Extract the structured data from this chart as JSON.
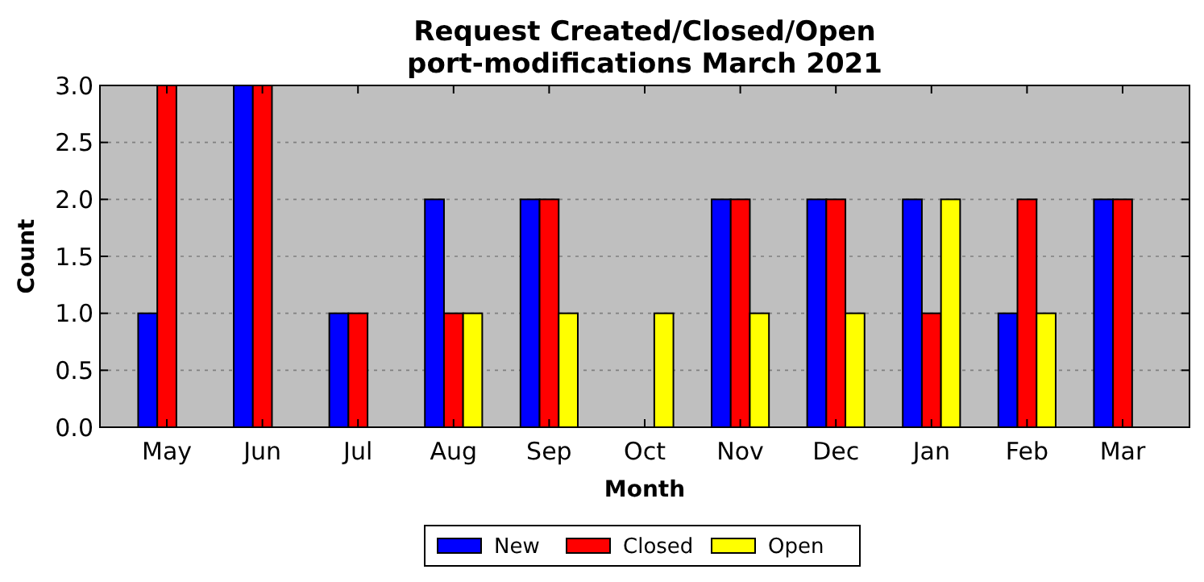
{
  "chart_data": {
    "type": "bar",
    "title": "Request Created/Closed/Open\nport-modifications March 2021",
    "xlabel": "Month",
    "ylabel": "Count",
    "categories": [
      "May",
      "Jun",
      "Jul",
      "Aug",
      "Sep",
      "Oct",
      "Nov",
      "Dec",
      "Jan",
      "Feb",
      "Mar"
    ],
    "series": [
      {
        "name": "New",
        "color": "#0000ff",
        "values": [
          1,
          3,
          1,
          2,
          2,
          0,
          2,
          2,
          2,
          1,
          2
        ]
      },
      {
        "name": "Closed",
        "color": "#ff0000",
        "values": [
          3,
          3,
          1,
          1,
          2,
          0,
          2,
          2,
          1,
          2,
          2
        ]
      },
      {
        "name": "Open",
        "color": "#ffff00",
        "values": [
          0,
          0,
          0,
          1,
          1,
          1,
          1,
          1,
          2,
          1,
          0
        ]
      }
    ],
    "ylim": [
      0,
      3
    ],
    "yticks": [
      {
        "value": 0,
        "label": "0.0"
      },
      {
        "value": 0.5,
        "label": "0.5"
      },
      {
        "value": 1,
        "label": "1.0"
      },
      {
        "value": 1.5,
        "label": "1.5"
      },
      {
        "value": 2,
        "label": "2.0"
      },
      {
        "value": 2.5,
        "label": "2.5"
      },
      {
        "value": 3,
        "label": "3.0"
      }
    ],
    "grid": "y",
    "legend": "bottom"
  }
}
